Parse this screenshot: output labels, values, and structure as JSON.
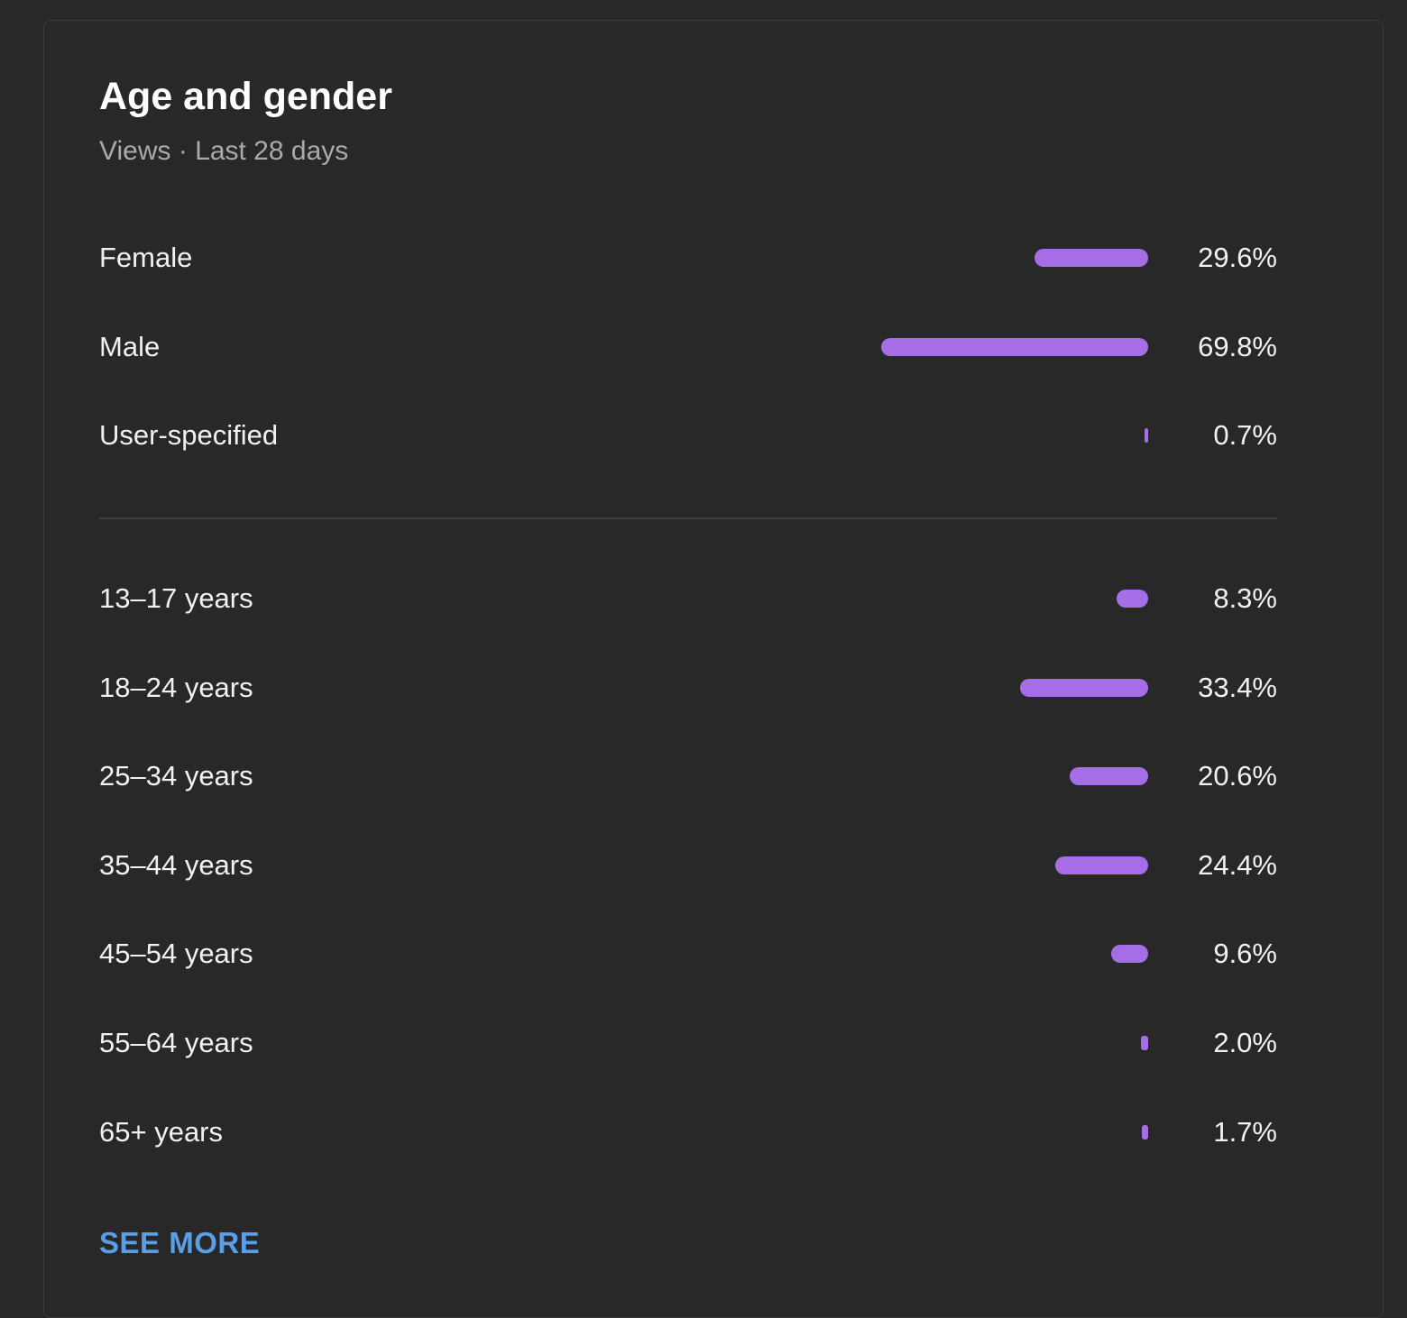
{
  "card": {
    "title": "Age and gender",
    "subtitle": "Views · Last 28 days",
    "see_more_label": "SEE MORE"
  },
  "colors": {
    "background": "#282828",
    "bar": "#a56ee6",
    "link": "#5a9ee8"
  },
  "chart_data": [
    {
      "type": "bar",
      "orientation": "horizontal",
      "categories": [
        "Female",
        "Male",
        "User-specified"
      ],
      "values": [
        29.6,
        69.8,
        0.7
      ],
      "value_labels": [
        "29.6%",
        "69.8%",
        "0.7%"
      ],
      "unit": "%"
    },
    {
      "type": "bar",
      "orientation": "horizontal",
      "categories": [
        "13–17 years",
        "18–24 years",
        "25–34 years",
        "35–44 years",
        "45–54 years",
        "55–64 years",
        "65+ years"
      ],
      "values": [
        8.3,
        33.4,
        20.6,
        24.4,
        9.6,
        2.0,
        1.7
      ],
      "value_labels": [
        "8.3%",
        "33.4%",
        "20.6%",
        "24.4%",
        "9.6%",
        "2.0%",
        "1.7%"
      ],
      "unit": "%"
    }
  ]
}
